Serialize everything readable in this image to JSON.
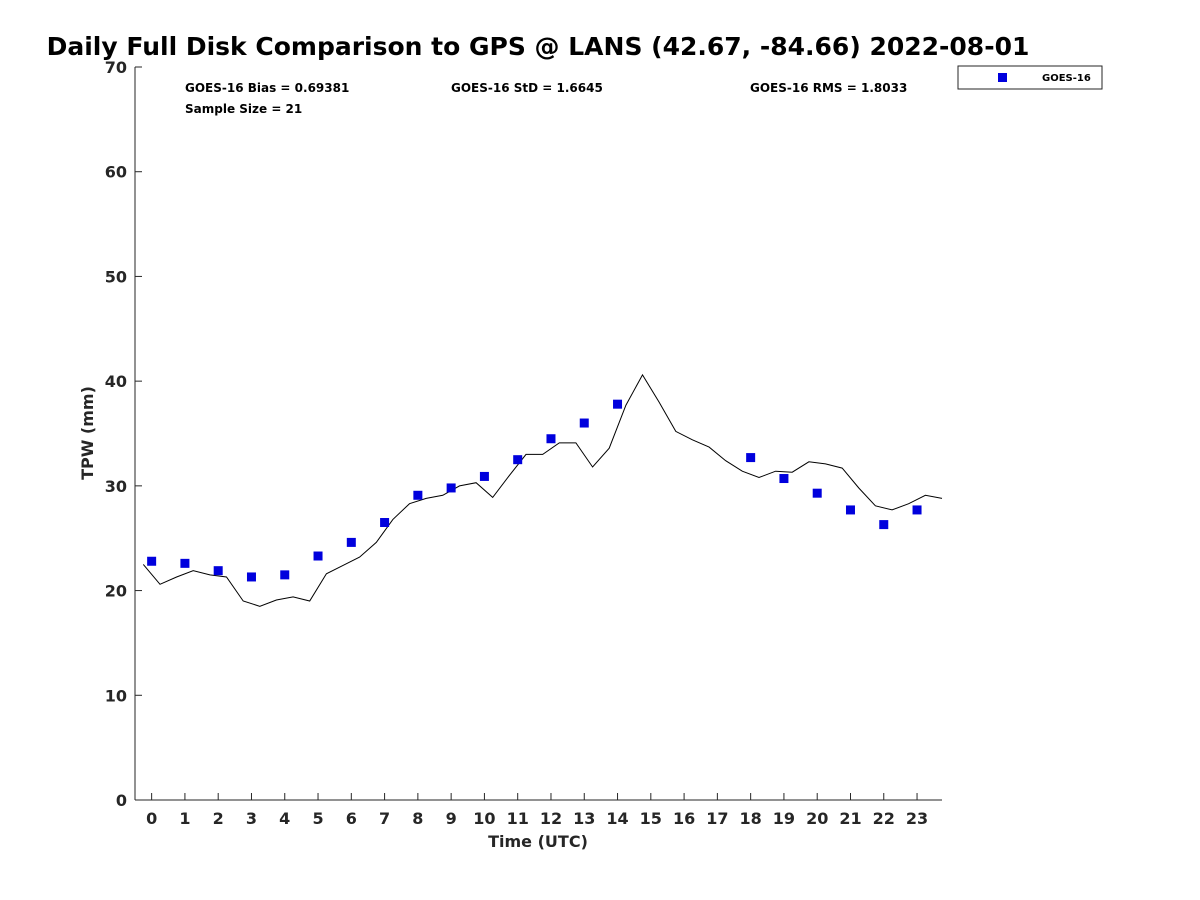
{
  "chart_data": {
    "type": "scatter",
    "title": "Daily Full Disk Comparison to GPS @ LANS (42.67, -84.66) 2022-08-01",
    "xlabel": "Time (UTC)",
    "ylabel": "TPW (mm)",
    "xlim": [
      -0.5,
      23.75
    ],
    "ylim": [
      0,
      70
    ],
    "x_ticks": [
      "0",
      "1",
      "2",
      "3",
      "4",
      "5",
      "6",
      "7",
      "8",
      "9",
      "10",
      "11",
      "12",
      "13",
      "14",
      "15",
      "16",
      "17",
      "18",
      "19",
      "20",
      "21",
      "22",
      "23"
    ],
    "y_ticks": [
      "0",
      "10",
      "20",
      "30",
      "40",
      "50",
      "60",
      "70"
    ],
    "grid": false,
    "legend": {
      "position": "top-right",
      "entries": [
        "GOES-16"
      ]
    },
    "stats": {
      "bias": "GOES-16 Bias = 0.69381",
      "std": "GOES-16 StD = 1.6645",
      "rms": "GOES-16 RMS = 1.8033",
      "sample_size": "Sample Size = 21"
    },
    "series": [
      {
        "name": "GOES-16",
        "kind": "scatter",
        "color": "#0000dd",
        "x": [
          0,
          1,
          2,
          3,
          4,
          5,
          6,
          7,
          8,
          9,
          10,
          11,
          12,
          13,
          14,
          18,
          19,
          20,
          21,
          22,
          23
        ],
        "y": [
          22.8,
          22.6,
          21.9,
          21.3,
          21.5,
          23.3,
          24.6,
          26.5,
          29.1,
          29.8,
          30.9,
          32.5,
          34.5,
          36.0,
          37.8,
          32.7,
          30.7,
          29.3,
          27.7,
          26.3,
          27.7
        ]
      },
      {
        "kind": "line",
        "color": "#000000",
        "x": [
          -0.25,
          0.25,
          0.75,
          1.25,
          1.75,
          2.25,
          2.75,
          3.25,
          3.75,
          4.25,
          4.75,
          5.25,
          5.75,
          6.25,
          6.75,
          7.25,
          7.75,
          8.25,
          8.75,
          9.25,
          9.75,
          10.25,
          10.75,
          11.25,
          11.75,
          12.25,
          12.75,
          13.25,
          13.75,
          14.25,
          14.75,
          15.25,
          15.75,
          16.25,
          16.75,
          17.25,
          17.75,
          18.25,
          18.75,
          19.25,
          19.75,
          20.25,
          20.75,
          21.25,
          21.75,
          22.25,
          22.75,
          23.25,
          23.75
        ],
        "y": [
          22.5,
          20.6,
          21.3,
          21.9,
          21.5,
          21.3,
          19.0,
          18.5,
          19.1,
          19.4,
          19.0,
          21.6,
          22.4,
          23.2,
          24.6,
          26.8,
          28.3,
          28.8,
          29.1,
          30.0,
          30.3,
          28.9,
          31.0,
          33.0,
          33.0,
          34.1,
          34.1,
          31.8,
          33.6,
          37.7,
          40.6,
          38.0,
          35.2,
          34.4,
          33.7,
          32.4,
          31.4,
          30.8,
          31.4,
          31.3,
          32.3,
          32.1,
          31.7,
          29.8,
          28.1,
          27.7,
          28.3,
          29.1,
          28.8
        ]
      }
    ]
  }
}
